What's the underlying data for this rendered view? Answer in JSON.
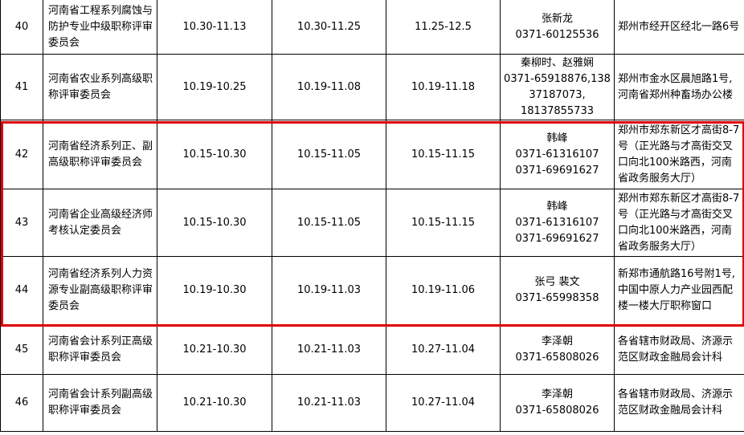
{
  "highlight_color": "#e00000",
  "rows": [
    {
      "no": "40",
      "name": "河南省工程系列腐蚀与防护专业中级职称评审委员会",
      "d1": "10.30-11.13",
      "d2": "10.30-11.25",
      "d3": "11.25-12.5",
      "contact": [
        "张新龙",
        "0371-60125536"
      ],
      "address": "郑州市经开区经北一路6号"
    },
    {
      "no": "41",
      "name": "河南省农业系列高级职称评审委员会",
      "d1": "10.19-10.25",
      "d2": "10.19-11.08",
      "d3": "10.19-11.18",
      "contact": [
        "秦柳时、赵雅娴",
        "0371-65918876,138",
        "37187073,",
        "18137855733"
      ],
      "address": "郑州市金水区晨旭路1号,河南省郑州种畜场办公楼"
    },
    {
      "no": "42",
      "name": "河南省经济系列正、副高级职称评审委员会",
      "d1": "10.15-10.30",
      "d2": "10.15-11.05",
      "d3": "10.15-11.15",
      "contact": [
        "韩峰",
        "0371-61316107",
        "0371-69691627"
      ],
      "address": "郑州市郑东新区才高街8-7号（正光路与才高街交叉口向北100米路西，河南省政务服务大厅）"
    },
    {
      "no": "43",
      "name": "河南省企业高级经济师考核认定委员会",
      "d1": "10.15-10.30",
      "d2": "10.15-11.05",
      "d3": "10.15-11.15",
      "contact": [
        "韩峰",
        "0371-61316107",
        "0371-69691627"
      ],
      "address": "郑州市郑东新区才高街8-7号（正光路与才高街交叉口向北100米路西，河南省政务服务大厅）"
    },
    {
      "no": "44",
      "name": "河南省经济系列人力资源专业副高级职称评审委员会",
      "d1": "10.19-10.30",
      "d2": "10.19-11.03",
      "d3": "10.19-11.06",
      "contact": [
        "张弓 裴文",
        "0371-65998358"
      ],
      "address": "新郑市通航路16号附1号,中国中原人力产业园西配楼一楼大厅职称窗口"
    },
    {
      "no": "45",
      "name": "河南省会计系列正高级职称评审委员会",
      "d1": "10.21-10.30",
      "d2": "10.21-11.03",
      "d3": "10.27-11.04",
      "contact": [
        "李泽朝",
        "0371-65808026"
      ],
      "address": "各省辖市财政局、济源示范区财政金融局会计科"
    },
    {
      "no": "46",
      "name": "河南省会计系列副高级职称评审委员会",
      "d1": "10.21-10.30",
      "d2": "10.21-11.03",
      "d3": "10.27-11.04",
      "contact": [
        "李泽朝",
        "0371-65808026"
      ],
      "address": "各省辖市财政局、济源示范区财政金融局会计科"
    }
  ]
}
